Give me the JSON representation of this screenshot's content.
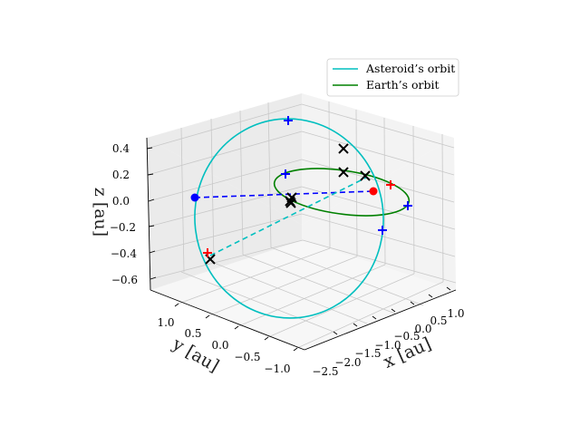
{
  "chart_data": {
    "type": "line3d",
    "title": "",
    "xlabel": "$x$ [au]",
    "ylabel": "$y$ [au]",
    "zlabel": "$z$ [au]",
    "xlabel_text": "x [au]",
    "ylabel_text": "y [au]",
    "zlabel_text": "z [au]",
    "xlim": [
      -2.5,
      1.0
    ],
    "ylim": [
      -1.0,
      1.3
    ],
    "zlim": [
      -0.6,
      0.4
    ],
    "xticks": [
      "−2.5",
      "−2.0",
      "−1.5",
      "−1.0",
      "−0.5",
      "0.0",
      "0.5",
      "1.0"
    ],
    "yticks": [
      "1.0",
      "0.5",
      "0.0",
      "−0.5",
      "−1.0"
    ],
    "zticks": [
      "0.4",
      "0.2",
      "0.0",
      "−0.2",
      "−0.4",
      "−0.6"
    ],
    "legend": {
      "location": "upper right",
      "entries": [
        {
          "label": "Asteroid’s orbit",
          "color": "#00bfbf"
        },
        {
          "label": "Earth’s orbit",
          "color": "#008000"
        }
      ]
    },
    "series": [
      {
        "name": "Asteroid’s orbit",
        "color": "#00bfbf",
        "style": "solid",
        "description": "inclined ellipse, semi-major axis ~1.4 au"
      },
      {
        "name": "Earth’s orbit",
        "color": "#008000",
        "style": "solid",
        "description": "circle, radius 1 au, in z=0 plane"
      },
      {
        "name": "Earth-Sun line",
        "color": "#0000ff",
        "style": "dashed"
      },
      {
        "name": "Asteroid-Sun line",
        "color": "#00bfbf",
        "style": "dashed"
      }
    ],
    "point_markers": [
      {
        "name": "Earth position",
        "marker": "circle",
        "color": "#ff0000"
      },
      {
        "name": "Asteroid position",
        "marker": "circle",
        "color": "#0000ff"
      }
    ],
    "cross_markers": {
      "marker": "x",
      "color": "#000000",
      "count": 7
    },
    "plus_markers": {
      "colors": [
        "#0000ff",
        "#ff0000"
      ],
      "count": 8
    },
    "colors": {
      "pane_left": "#ebebeb",
      "pane_right": "#f3f3f3",
      "pane_floor": "#f7f7f7",
      "grid": "#c8c8c8"
    }
  }
}
